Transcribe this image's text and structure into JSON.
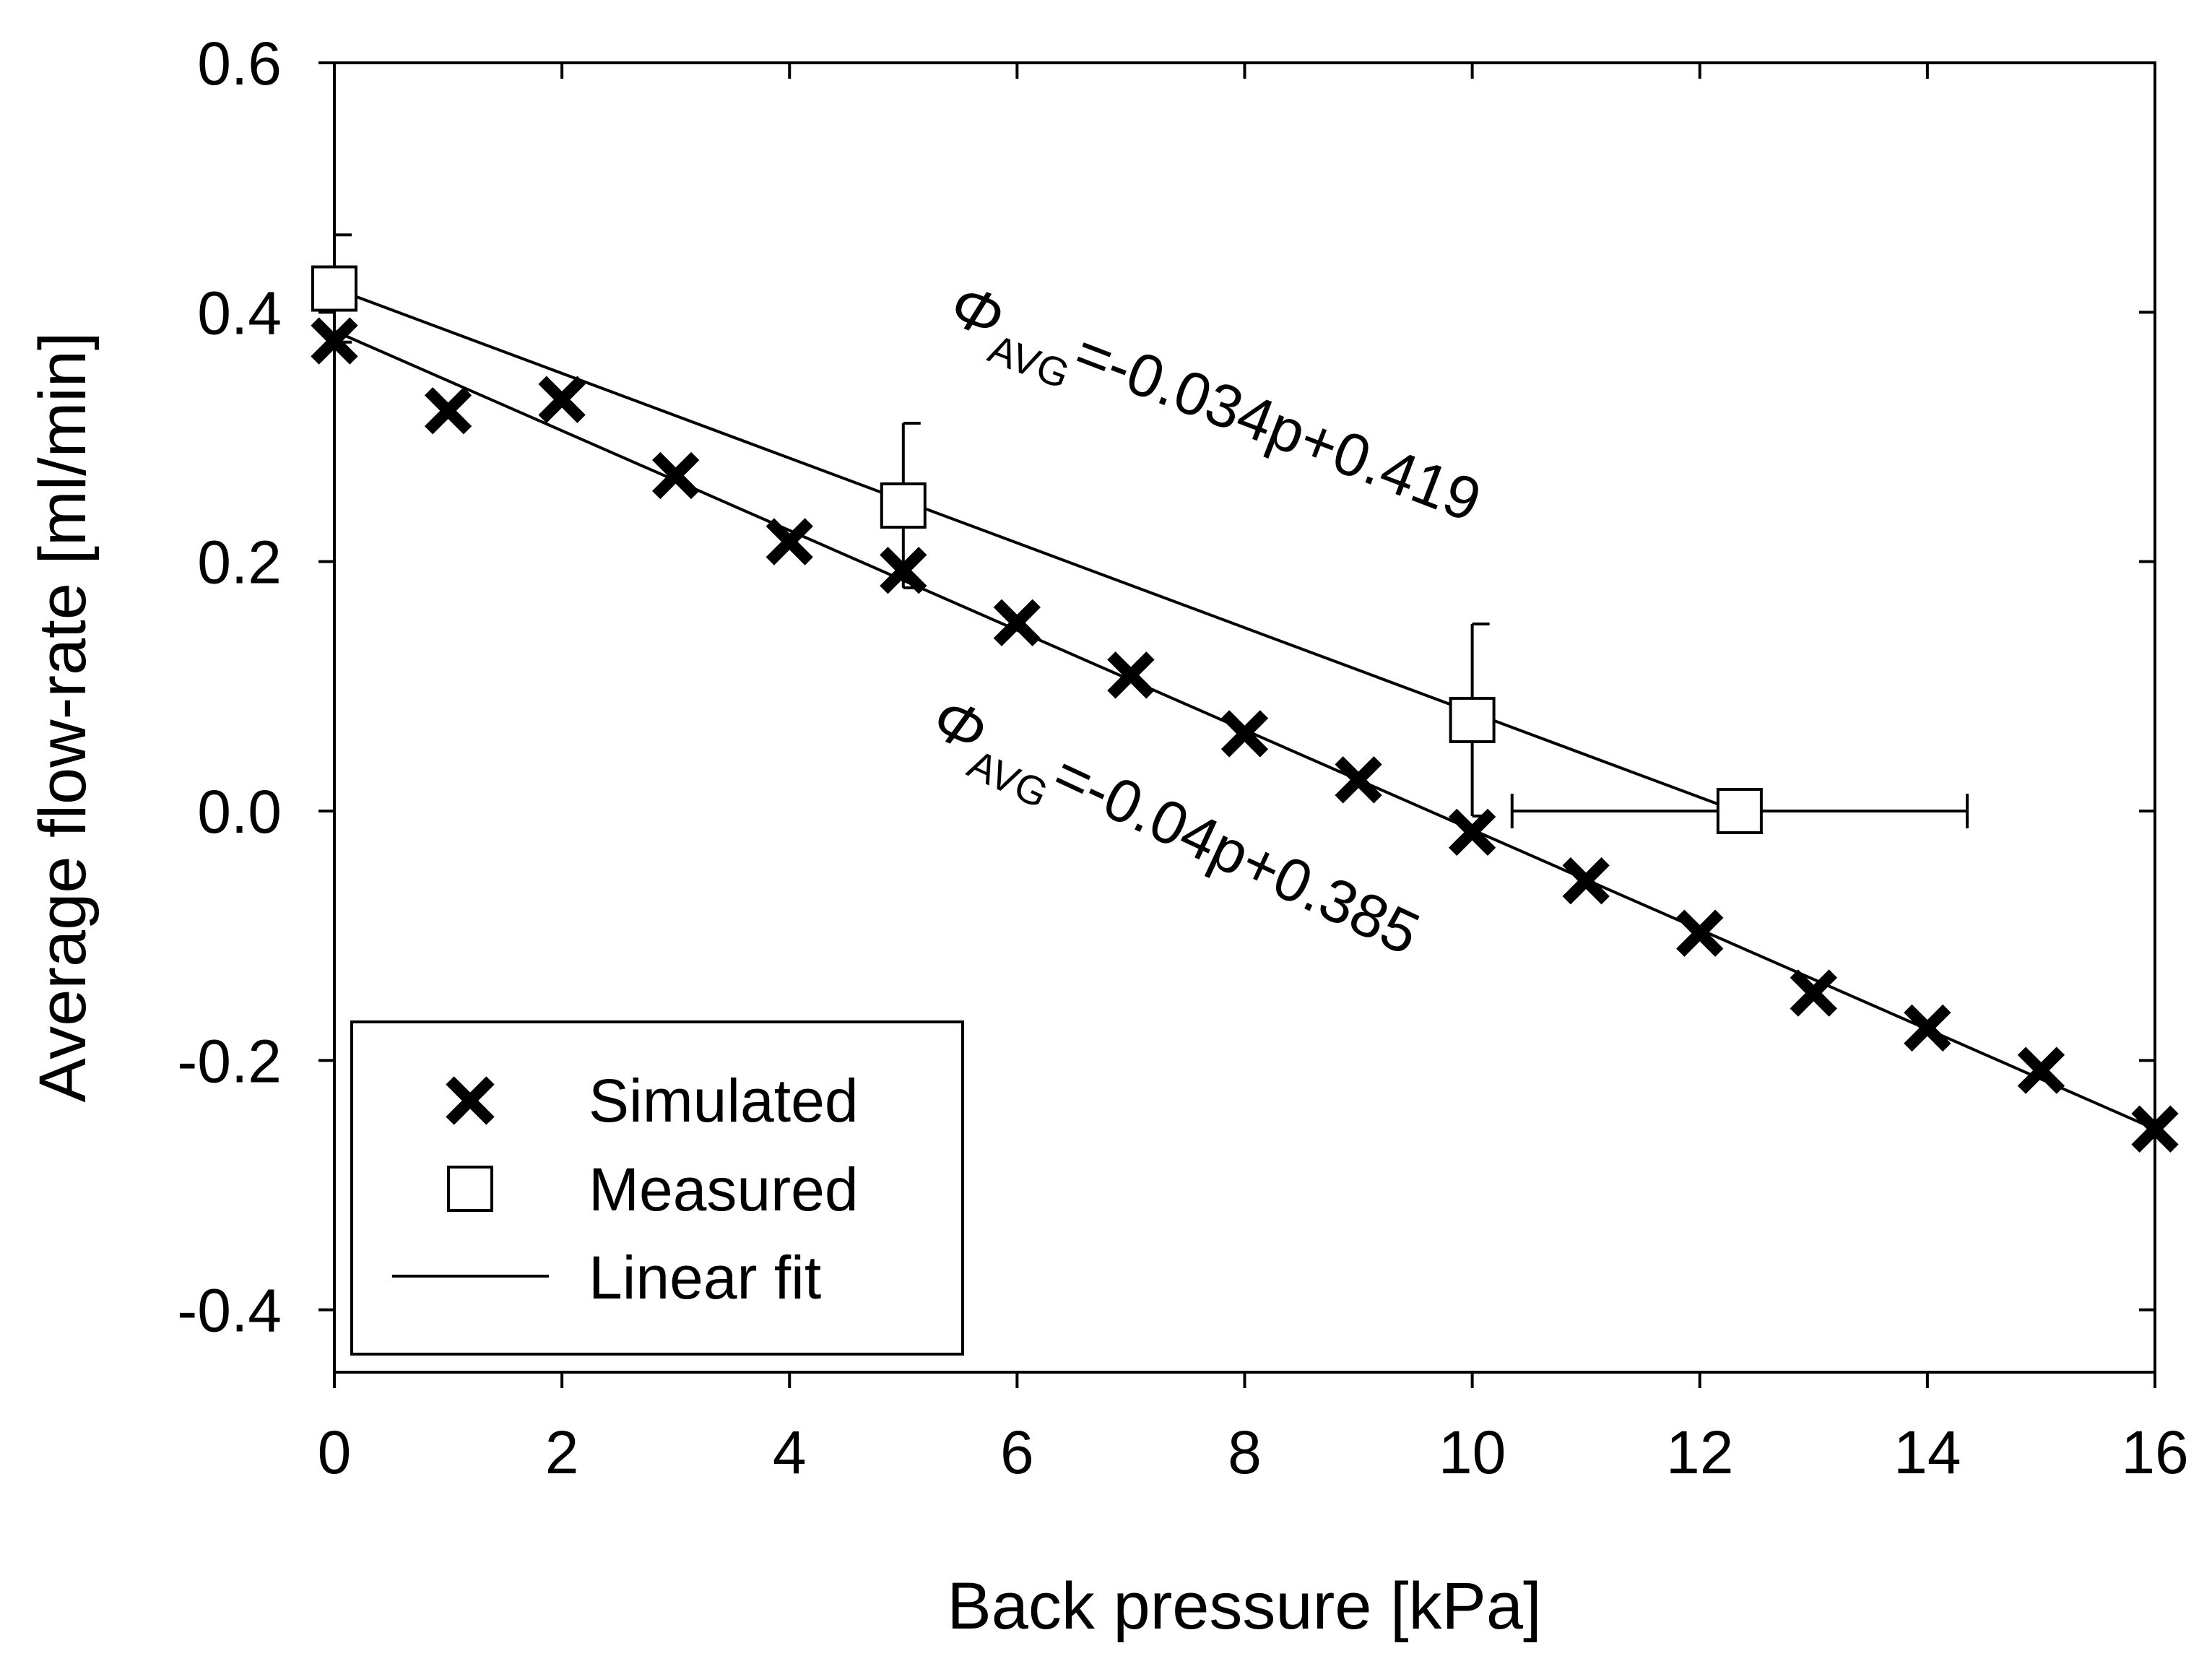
{
  "chart_data": {
    "type": "scatter",
    "xlabel": "Back pressure [kPa]",
    "ylabel": "Average flow-rate [ml/min]",
    "xlim": [
      0,
      16
    ],
    "ylim": [
      -0.45,
      0.6
    ],
    "xticks": [
      0,
      2,
      4,
      6,
      8,
      10,
      12,
      14,
      16
    ],
    "xtick_labels": [
      "0",
      "2",
      "4",
      "6",
      "8",
      "10",
      "12",
      "14",
      "16"
    ],
    "yticks": [
      0.6,
      0.4,
      0.2,
      0.0,
      -0.2,
      -0.4
    ],
    "ytick_labels": [
      "0.6",
      "0.4",
      "0.2",
      "0.0",
      "-0.2",
      "-0.4"
    ],
    "grid": false,
    "legend_position": "bottom-left",
    "series": [
      {
        "name": "Simulated",
        "marker": "x",
        "x": [
          0,
          1,
          2,
          3,
          4,
          5,
          6,
          7,
          8,
          9,
          10,
          11,
          12,
          13,
          14,
          15,
          16
        ],
        "y": [
          0.377,
          0.321,
          0.33,
          0.269,
          0.216,
          0.193,
          0.151,
          0.109,
          0.062,
          0.025,
          -0.017,
          -0.056,
          -0.098,
          -0.146,
          -0.174,
          -0.208,
          -0.255
        ]
      },
      {
        "name": "Measured",
        "marker": "square",
        "x": [
          0,
          5,
          10,
          12.35
        ],
        "y": [
          0.419,
          0.245,
          0.073,
          0.0
        ],
        "y_err_up": [
          0.043,
          0.066,
          0.077,
          0
        ],
        "y_err_down": [
          0.043,
          0.066,
          0.077,
          0
        ],
        "x_err_left": [
          0,
          0,
          0,
          2.0
        ],
        "x_err_right": [
          0,
          0,
          0,
          2.0
        ]
      }
    ],
    "fits": [
      {
        "name": "Linear fit",
        "slope": -0.034,
        "intercept": 0.419,
        "x_range": [
          0,
          12.35
        ]
      },
      {
        "name": "Linear fit",
        "slope": -0.04,
        "intercept": 0.385,
        "x_range": [
          0,
          16
        ]
      }
    ],
    "legend": [
      "Simulated",
      "Measured",
      "Linear fit"
    ],
    "annotations": [
      {
        "symbol": "Φ",
        "sub": "AVG",
        "text": "=-0.034p+0.419"
      },
      {
        "symbol": "Φ",
        "sub": "AVG",
        "text": "=-0.04p+0.385"
      }
    ],
    "colors": {
      "marks": "#000000",
      "background": "#ffffff"
    }
  }
}
